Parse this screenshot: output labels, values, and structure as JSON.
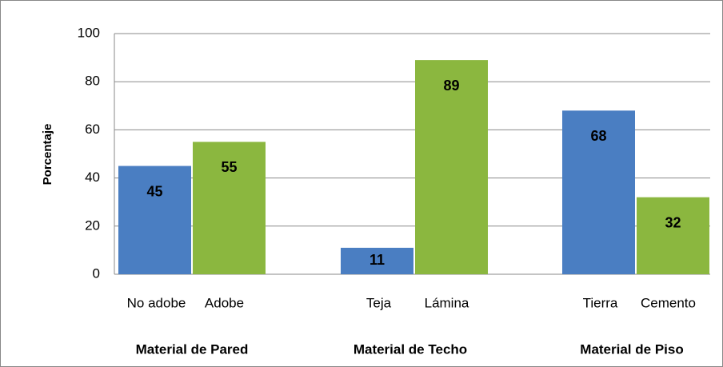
{
  "chart_data": {
    "type": "bar",
    "y_label": "Porcentaje",
    "categories": [
      "No adobe",
      "Adobe",
      "Teja",
      "Lámina",
      "Tierra",
      "Cemento"
    ],
    "values": [
      45,
      55,
      11,
      89,
      68,
      32
    ],
    "colors": [
      "#4a7ec2",
      "#8bb73f",
      "#4a7ec2",
      "#8bb73f",
      "#4a7ec2",
      "#8bb73f"
    ],
    "groups": [
      "Material de Pared",
      "Material de Techo",
      "Material de Piso"
    ],
    "ylim": [
      0,
      100
    ],
    "yticks": [
      0,
      20,
      40,
      60,
      80,
      100
    ],
    "grid": true
  }
}
